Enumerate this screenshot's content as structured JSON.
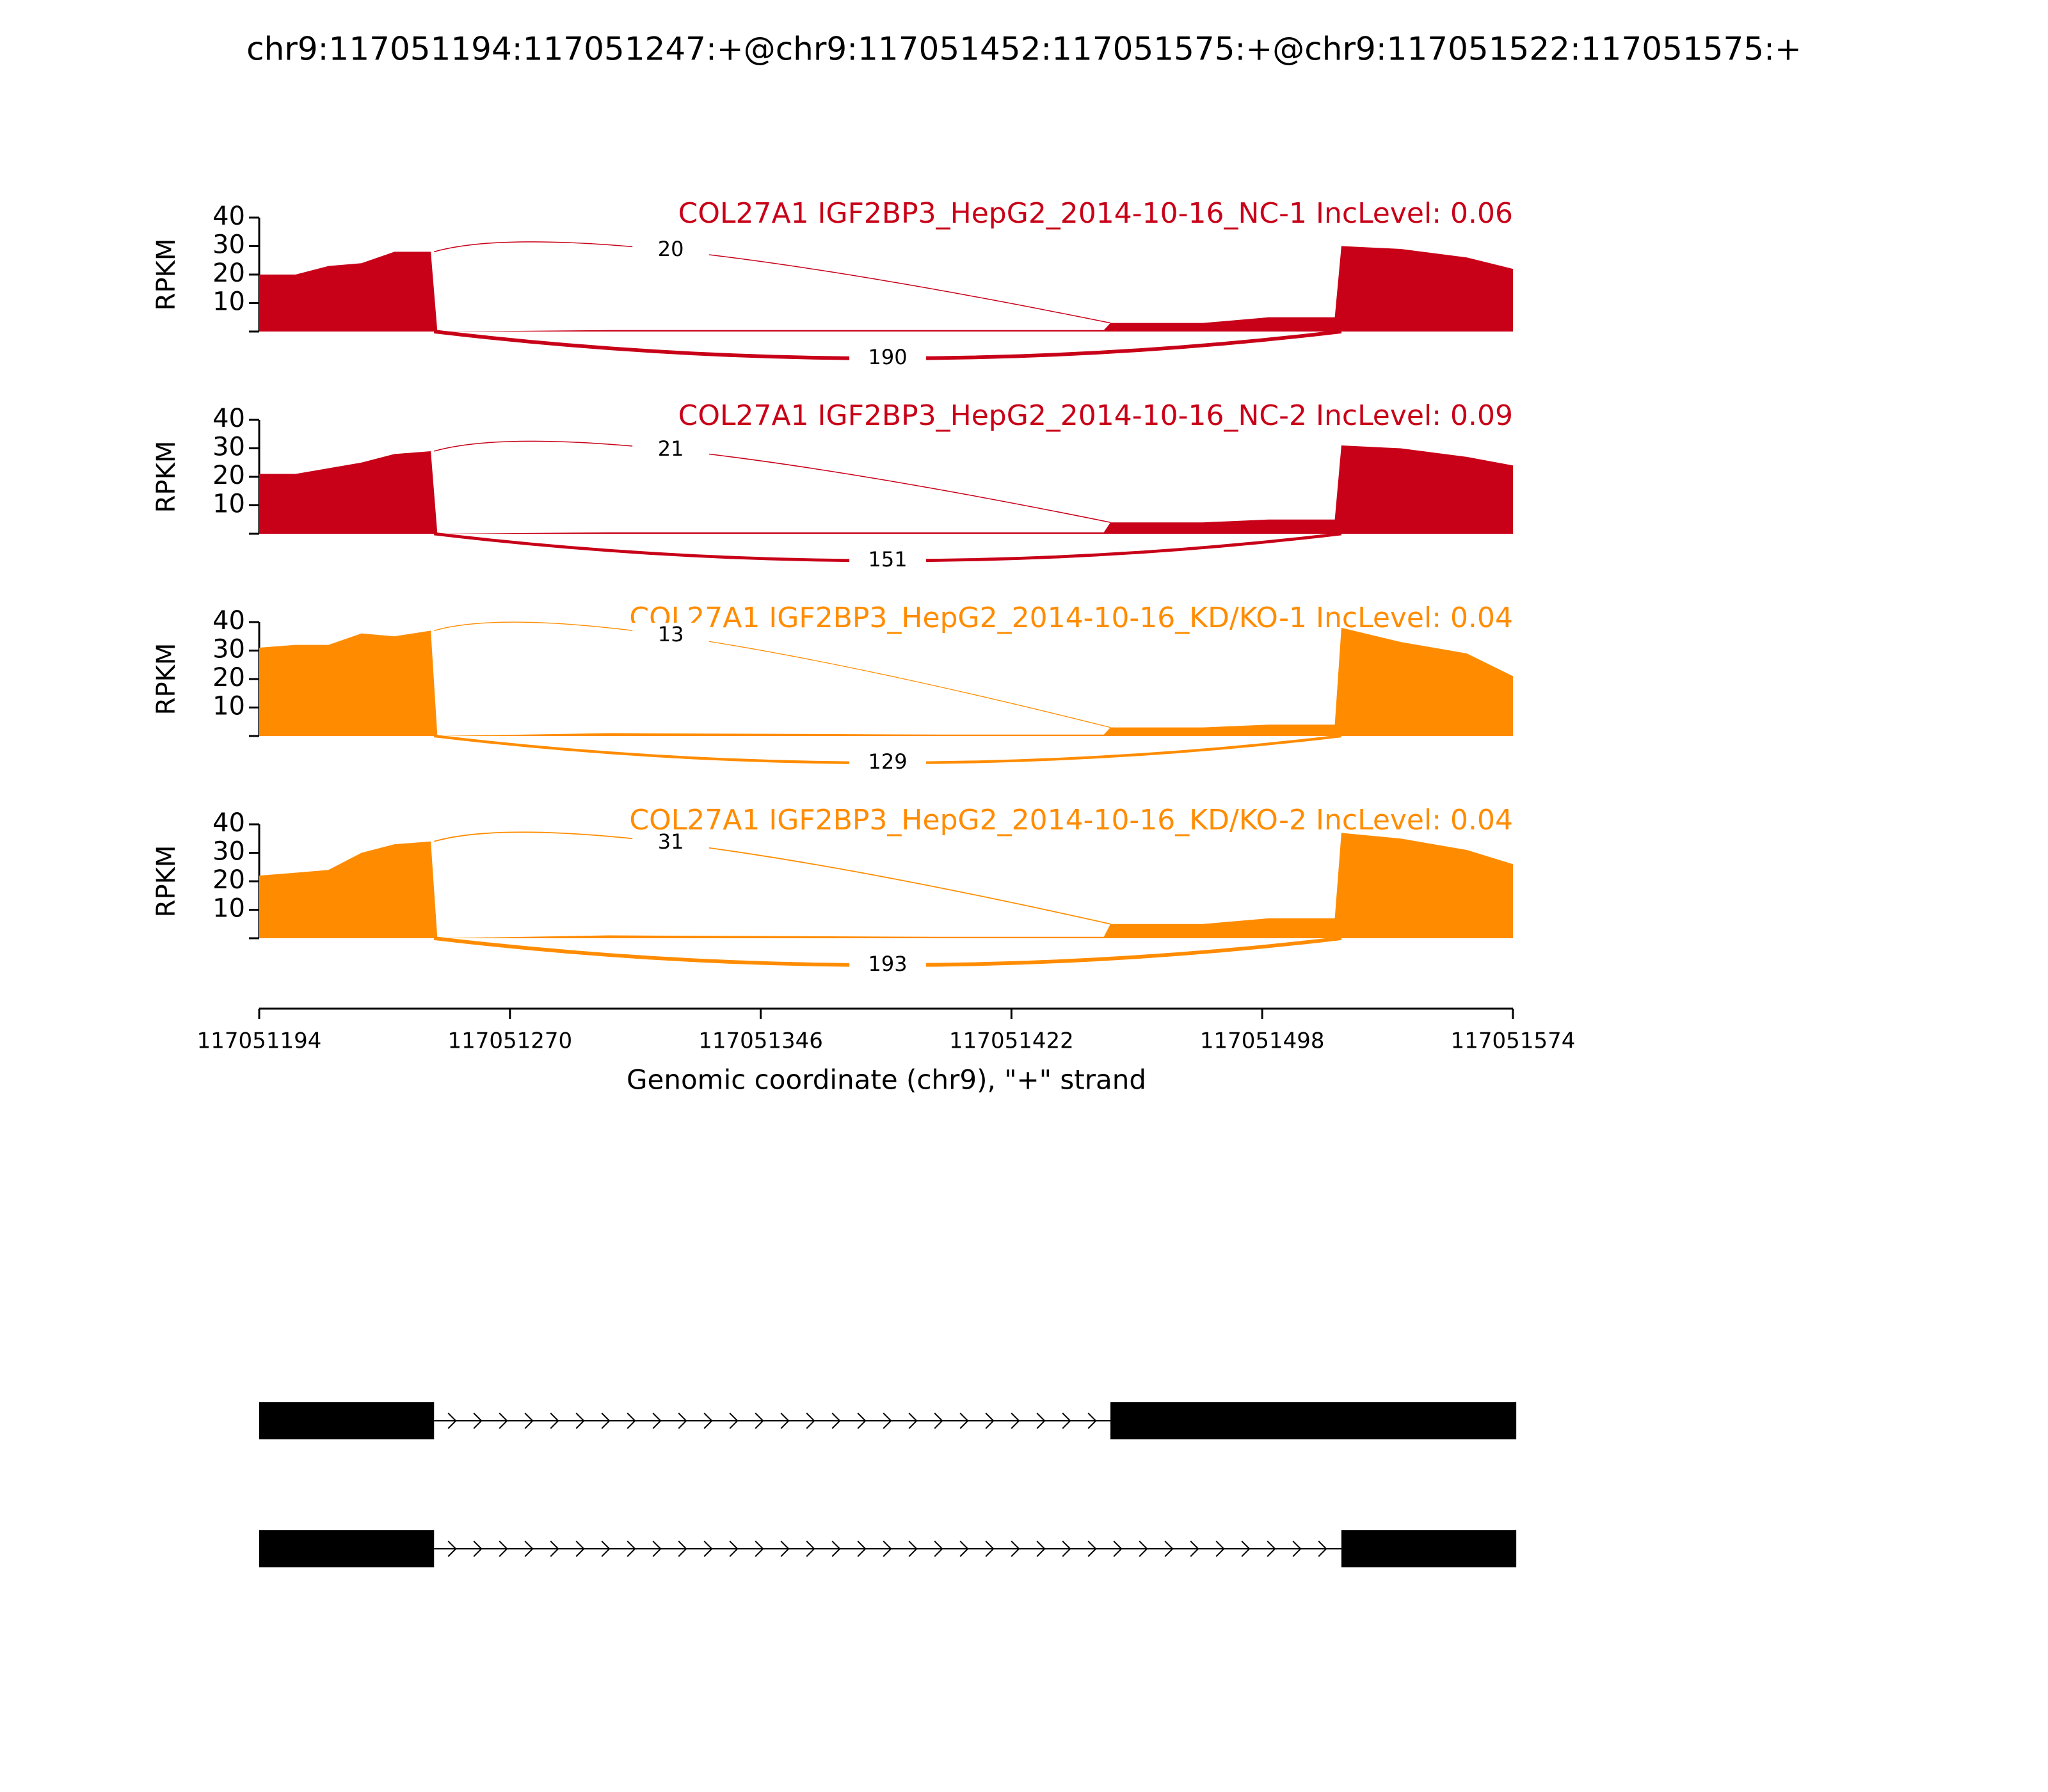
{
  "chart_data": {
    "type": "sashimi",
    "title": "chr9:117051194:117051247:+@chr9:117051452:117051575:+@chr9:117051522:117051575:+",
    "xlabel": "Genomic coordinate (chr9), \"+\" strand",
    "ylabel": "RPKM",
    "xlim": [
      117051194,
      117051574
    ],
    "xticks": [
      117051194,
      117051270,
      117051346,
      117051422,
      117051498,
      117051574
    ],
    "ylim": [
      0,
      40
    ],
    "yticks": [
      10,
      20,
      30,
      40
    ],
    "x": [
      117051194,
      117051205,
      117051215,
      117051225,
      117051235,
      117051246,
      117051248,
      117051300,
      117051400,
      117051450,
      117051452,
      117051480,
      117051500,
      117051520,
      117051522,
      117051540,
      117051560,
      117051574
    ],
    "junctions": [
      {
        "start": 117051247,
        "end": 117051452
      },
      {
        "start": 117051247,
        "end": 117051522
      }
    ],
    "panels": [
      {
        "name": "COL27A1 IGF2BP3_HepG2_2014-10-16_NC-1 IncLevel: 0.06",
        "color": "#c80018",
        "values": [
          20,
          20,
          23,
          24,
          28,
          28,
          0,
          0.5,
          0.5,
          0.5,
          3,
          3,
          5,
          5,
          30,
          29,
          26,
          22
        ],
        "junction_counts": [
          20,
          190
        ]
      },
      {
        "name": "COL27A1 IGF2BP3_HepG2_2014-10-16_NC-2 IncLevel: 0.09",
        "color": "#c80018",
        "values": [
          21,
          21,
          23,
          25,
          28,
          29,
          0,
          0.5,
          0.5,
          0.5,
          4,
          4,
          5,
          5,
          31,
          30,
          27,
          24
        ],
        "junction_counts": [
          21,
          151
        ]
      },
      {
        "name": "COL27A1 IGF2BP3_HepG2_2014-10-16_KD/KO-1 IncLevel: 0.04",
        "color": "#ff8c00",
        "values": [
          31,
          32,
          32,
          36,
          35,
          37,
          0,
          1,
          0.5,
          0.5,
          3,
          3,
          4,
          4,
          38,
          33,
          29,
          21
        ],
        "junction_counts": [
          13,
          129
        ]
      },
      {
        "name": "COL27A1 IGF2BP3_HepG2_2014-10-16_KD/KO-2 IncLevel: 0.04",
        "color": "#ff8c00",
        "values": [
          22,
          23,
          24,
          30,
          33,
          34,
          0,
          1,
          0.5,
          0.5,
          5,
          5,
          7,
          7,
          37,
          35,
          31,
          26
        ],
        "junction_counts": [
          31,
          193
        ]
      }
    ],
    "transcripts": [
      {
        "exons": [
          [
            117051194,
            117051247
          ],
          [
            117051452,
            117051575
          ]
        ]
      },
      {
        "exons": [
          [
            117051194,
            117051247
          ],
          [
            117051522,
            117051575
          ]
        ]
      }
    ]
  }
}
